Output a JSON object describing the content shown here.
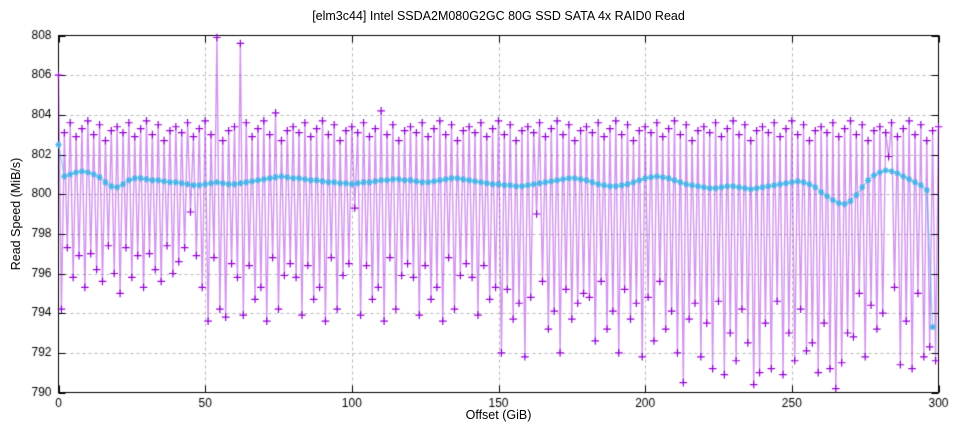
{
  "chart_data": {
    "type": "line",
    "title": "[elm3c44] Intel SSDA2M080G2GC 80G SSD SATA 4x RAID0 Read",
    "xlabel": "Offset (GiB)",
    "ylabel": "Read Speed (MiB/s)",
    "xlim": [
      0,
      300
    ],
    "ylim": [
      790,
      808
    ],
    "xticks": [
      0,
      50,
      100,
      150,
      200,
      250,
      300
    ],
    "yticks": [
      790,
      792,
      794,
      796,
      798,
      800,
      802,
      804,
      806,
      808
    ],
    "grid": true,
    "legend": "none",
    "grid_color": "#b8b8b8",
    "border_color": "#000000",
    "series": [
      {
        "name": "read-speed-samples",
        "marker": "plus",
        "marker_color": "#9400d3",
        "line_color": "rgba(148,0,211,0.42)",
        "x_start": 0,
        "x_step": 1,
        "values": [
          806.0,
          794.2,
          803.1,
          797.3,
          803.6,
          795.8,
          802.9,
          796.9,
          803.3,
          795.3,
          803.7,
          797.0,
          803.0,
          796.2,
          803.5,
          795.6,
          802.7,
          797.4,
          803.2,
          796.0,
          803.4,
          795.0,
          803.1,
          797.3,
          803.6,
          795.8,
          802.9,
          796.9,
          803.3,
          795.3,
          803.7,
          797.0,
          803.0,
          796.2,
          803.5,
          795.6,
          802.7,
          797.4,
          803.2,
          796.0,
          803.4,
          796.6,
          803.1,
          797.3,
          803.6,
          799.1,
          802.9,
          796.9,
          803.3,
          795.3,
          803.7,
          793.6,
          803.0,
          796.8,
          807.9,
          794.2,
          802.7,
          793.8,
          803.2,
          796.5,
          803.4,
          795.8,
          807.6,
          793.9,
          803.6,
          796.4,
          802.9,
          794.7,
          803.3,
          795.3,
          803.7,
          793.6,
          803.0,
          796.8,
          804.1,
          794.2,
          802.7,
          795.9,
          803.2,
          796.5,
          803.4,
          795.8,
          803.1,
          793.9,
          803.6,
          796.4,
          802.9,
          794.7,
          803.3,
          795.3,
          803.7,
          793.6,
          803.0,
          796.8,
          803.5,
          794.2,
          802.7,
          795.9,
          803.2,
          796.5,
          803.4,
          799.3,
          803.1,
          793.9,
          803.6,
          796.4,
          802.9,
          794.7,
          803.3,
          795.3,
          804.2,
          793.6,
          803.0,
          796.8,
          803.5,
          794.2,
          802.7,
          795.9,
          803.2,
          796.5,
          803.4,
          795.8,
          803.1,
          793.9,
          803.6,
          796.4,
          802.9,
          794.7,
          803.3,
          795.3,
          803.7,
          793.6,
          803.0,
          796.8,
          803.5,
          794.2,
          802.7,
          795.9,
          803.2,
          796.5,
          803.4,
          795.8,
          803.1,
          793.9,
          803.6,
          796.4,
          802.9,
          794.7,
          803.3,
          795.3,
          803.7,
          792.0,
          803.0,
          795.2,
          803.5,
          793.7,
          802.7,
          794.5,
          803.2,
          791.8,
          803.4,
          794.8,
          803.1,
          799.0,
          803.6,
          795.6,
          802.9,
          793.2,
          803.3,
          794.1,
          803.7,
          792.0,
          803.0,
          795.2,
          803.5,
          793.7,
          802.7,
          794.5,
          803.2,
          795.0,
          803.4,
          794.8,
          803.1,
          792.6,
          803.6,
          795.6,
          802.9,
          793.2,
          803.3,
          794.1,
          803.7,
          792.0,
          803.0,
          795.2,
          803.5,
          793.7,
          802.7,
          794.5,
          803.2,
          791.8,
          803.4,
          794.8,
          803.1,
          792.6,
          803.6,
          795.6,
          802.9,
          793.2,
          803.3,
          794.1,
          803.7,
          792.0,
          803.0,
          790.5,
          803.5,
          793.7,
          802.7,
          794.5,
          803.2,
          791.8,
          803.4,
          793.5,
          803.1,
          791.2,
          803.6,
          794.6,
          802.9,
          790.9,
          803.3,
          793.0,
          803.7,
          791.6,
          803.0,
          794.2,
          803.5,
          792.5,
          802.7,
          790.4,
          803.2,
          791.0,
          803.4,
          793.5,
          803.1,
          791.2,
          803.6,
          794.6,
          802.9,
          790.9,
          803.3,
          793.0,
          803.7,
          791.6,
          803.0,
          794.2,
          803.5,
          792.1,
          802.7,
          792.5,
          803.2,
          791.0,
          803.4,
          793.5,
          803.1,
          791.2,
          803.6,
          790.2,
          802.9,
          791.5,
          803.3,
          793.0,
          803.7,
          792.8,
          803.0,
          795.0,
          803.5,
          791.8,
          802.7,
          794.4,
          803.2,
          793.2,
          803.4,
          794.0,
          803.1,
          801.9,
          803.6,
          795.3,
          802.9,
          791.4,
          803.3,
          793.6,
          803.7,
          791.2,
          803.0,
          795.0,
          803.5,
          791.8,
          802.7,
          792.3,
          803.2,
          791.6,
          803.4
        ]
      },
      {
        "name": "moving-average",
        "marker": "asterisk",
        "marker_color": "#45b4e8",
        "line_color": "rgba(86,180,233,0.6)",
        "x_start": 0,
        "x_step": 2,
        "values": [
          802.5,
          800.9,
          801.0,
          801.1,
          801.15,
          801.1,
          801.0,
          800.85,
          800.6,
          800.4,
          800.35,
          800.5,
          800.7,
          800.8,
          800.8,
          800.75,
          800.7,
          800.7,
          800.65,
          800.6,
          800.6,
          800.55,
          800.5,
          800.45,
          800.45,
          800.5,
          800.55,
          800.6,
          800.55,
          800.5,
          800.5,
          800.55,
          800.6,
          800.65,
          800.7,
          800.75,
          800.8,
          800.85,
          800.9,
          800.85,
          800.8,
          800.8,
          800.75,
          800.7,
          800.7,
          800.65,
          800.6,
          800.6,
          800.55,
          800.55,
          800.5,
          800.55,
          800.6,
          800.6,
          800.65,
          800.7,
          800.7,
          800.75,
          800.75,
          800.7,
          800.7,
          800.65,
          800.6,
          800.6,
          800.65,
          800.7,
          800.75,
          800.8,
          800.8,
          800.75,
          800.7,
          800.65,
          800.6,
          800.55,
          800.5,
          800.5,
          800.45,
          800.45,
          800.4,
          800.4,
          800.45,
          800.5,
          800.55,
          800.6,
          800.65,
          800.7,
          800.75,
          800.8,
          800.8,
          800.75,
          800.7,
          800.6,
          800.5,
          800.45,
          800.4,
          800.4,
          800.45,
          800.5,
          800.6,
          800.7,
          800.8,
          800.85,
          800.9,
          800.85,
          800.8,
          800.7,
          800.6,
          800.5,
          800.45,
          800.4,
          800.35,
          800.3,
          800.3,
          800.35,
          800.4,
          800.4,
          800.35,
          800.3,
          800.25,
          800.3,
          800.35,
          800.4,
          800.45,
          800.5,
          800.55,
          800.6,
          800.65,
          800.6,
          800.5,
          800.35,
          800.1,
          799.9,
          799.7,
          799.55,
          799.5,
          799.65,
          799.95,
          800.35,
          800.7,
          800.95,
          801.1,
          801.2,
          801.15,
          801.05,
          800.9,
          800.75,
          800.6,
          800.45,
          800.2,
          793.3
        ]
      }
    ]
  }
}
